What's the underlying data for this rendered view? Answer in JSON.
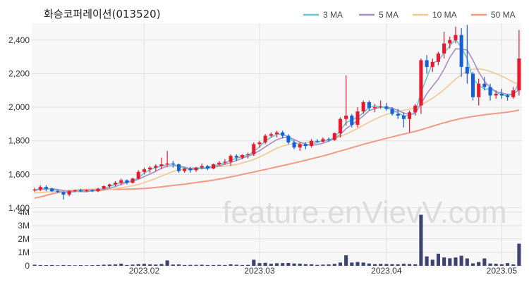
{
  "chart_data": {
    "type": "candlestick",
    "title": "화승코퍼레이션(013520)",
    "watermark": "feature.enVievV.com",
    "price_axis": {
      "ticks": [
        1400,
        1600,
        1800,
        2000,
        2200,
        2400
      ],
      "tick_labels": [
        "1,400",
        "1,600",
        "1,800",
        "2,000",
        "2,200",
        "2,400"
      ],
      "ylim": [
        1400,
        2500
      ]
    },
    "volume_axis": {
      "ticks": [
        0,
        1000000,
        2000000,
        3000000,
        4000000
      ],
      "tick_labels": [
        "0",
        "1M",
        "2M",
        "3M",
        "4M"
      ],
      "ylim": [
        0,
        4200000
      ]
    },
    "x_labels": [
      {
        "index": 19,
        "label": "2023.02"
      },
      {
        "index": 39,
        "label": "2023.03"
      },
      {
        "index": 61,
        "label": "2023.04"
      },
      {
        "index": 81,
        "label": "2023.05"
      }
    ],
    "colors": {
      "up": "#e8192c",
      "down": "#1560d8",
      "volume": "#3d4270",
      "plot_bg": "#f7f7f7",
      "grid": "#e2e2e2"
    },
    "legend": [
      {
        "name": "3 MA",
        "color": "#66c7d1",
        "key": "ma3"
      },
      {
        "name": "5 MA",
        "color": "#a98ec0",
        "key": "ma5"
      },
      {
        "name": "10 MA",
        "color": "#f2c890",
        "key": "ma10"
      },
      {
        "name": "50 MA",
        "color": "#f19a86",
        "key": "ma50"
      }
    ],
    "ohlc": [
      [
        1505,
        1520,
        1495,
        1510
      ],
      [
        1510,
        1535,
        1500,
        1525
      ],
      [
        1525,
        1535,
        1500,
        1515
      ],
      [
        1515,
        1520,
        1495,
        1500
      ],
      [
        1500,
        1510,
        1490,
        1495
      ],
      [
        1495,
        1500,
        1450,
        1480
      ],
      [
        1480,
        1505,
        1470,
        1500
      ],
      [
        1500,
        1510,
        1495,
        1505
      ],
      [
        1505,
        1515,
        1495,
        1500
      ],
      [
        1500,
        1510,
        1495,
        1505
      ],
      [
        1505,
        1510,
        1495,
        1500
      ],
      [
        1500,
        1520,
        1495,
        1515
      ],
      [
        1515,
        1535,
        1510,
        1530
      ],
      [
        1530,
        1545,
        1520,
        1540
      ],
      [
        1540,
        1560,
        1530,
        1550
      ],
      [
        1550,
        1575,
        1535,
        1565
      ],
      [
        1565,
        1570,
        1540,
        1550
      ],
      [
        1550,
        1580,
        1545,
        1575
      ],
      [
        1575,
        1625,
        1570,
        1615
      ],
      [
        1615,
        1640,
        1600,
        1630
      ],
      [
        1630,
        1650,
        1610,
        1640
      ],
      [
        1640,
        1660,
        1620,
        1650
      ],
      [
        1650,
        1700,
        1630,
        1660
      ],
      [
        1660,
        1740,
        1645,
        1665
      ],
      [
        1665,
        1680,
        1640,
        1660
      ],
      [
        1660,
        1665,
        1610,
        1620
      ],
      [
        1620,
        1640,
        1610,
        1635
      ],
      [
        1635,
        1645,
        1610,
        1625
      ],
      [
        1625,
        1645,
        1615,
        1640
      ],
      [
        1640,
        1665,
        1630,
        1650
      ],
      [
        1650,
        1655,
        1625,
        1635
      ],
      [
        1635,
        1665,
        1630,
        1660
      ],
      [
        1660,
        1680,
        1650,
        1670
      ],
      [
        1670,
        1690,
        1660,
        1675
      ],
      [
        1675,
        1720,
        1650,
        1710
      ],
      [
        1710,
        1720,
        1680,
        1700
      ],
      [
        1700,
        1720,
        1690,
        1715
      ],
      [
        1715,
        1730,
        1695,
        1720
      ],
      [
        1720,
        1790,
        1710,
        1780
      ],
      [
        1780,
        1800,
        1760,
        1790
      ],
      [
        1790,
        1840,
        1780,
        1830
      ],
      [
        1830,
        1850,
        1820,
        1840
      ],
      [
        1840,
        1860,
        1820,
        1850
      ],
      [
        1850,
        1860,
        1815,
        1830
      ],
      [
        1830,
        1840,
        1780,
        1790
      ],
      [
        1790,
        1805,
        1750,
        1760
      ],
      [
        1760,
        1790,
        1740,
        1780
      ],
      [
        1780,
        1790,
        1750,
        1770
      ],
      [
        1770,
        1810,
        1760,
        1800
      ],
      [
        1800,
        1810,
        1790,
        1795
      ],
      [
        1795,
        1820,
        1790,
        1810
      ],
      [
        1810,
        1820,
        1795,
        1805
      ],
      [
        1805,
        1850,
        1800,
        1845
      ],
      [
        1845,
        1940,
        1820,
        1930
      ],
      [
        1930,
        2190,
        1890,
        1950
      ],
      [
        1950,
        1960,
        1880,
        1895
      ],
      [
        1895,
        2000,
        1880,
        1975
      ],
      [
        1975,
        2040,
        1960,
        2030
      ],
      [
        2030,
        2040,
        1980,
        1995
      ],
      [
        1995,
        2020,
        1970,
        2000
      ],
      [
        2000,
        2040,
        1990,
        2005
      ],
      [
        2005,
        2025,
        1980,
        1990
      ],
      [
        1990,
        2000,
        1950,
        1960
      ],
      [
        1960,
        1990,
        1930,
        1950
      ],
      [
        1950,
        1970,
        1880,
        1930
      ],
      [
        1930,
        1980,
        1850,
        1970
      ],
      [
        1970,
        2020,
        1950,
        2010
      ],
      [
        2010,
        2290,
        1960,
        2280
      ],
      [
        2280,
        2310,
        2200,
        2240
      ],
      [
        2240,
        2290,
        2210,
        2270
      ],
      [
        2270,
        2330,
        2250,
        2320
      ],
      [
        2320,
        2450,
        2290,
        2380
      ],
      [
        2380,
        2420,
        2350,
        2400
      ],
      [
        2400,
        2480,
        2380,
        2430
      ],
      [
        2430,
        2470,
        2180,
        2240
      ],
      [
        2240,
        2490,
        2140,
        2200
      ],
      [
        2200,
        2210,
        2040,
        2060
      ],
      [
        2060,
        2170,
        2010,
        2140
      ],
      [
        2140,
        2180,
        2100,
        2120
      ],
      [
        2120,
        2140,
        2040,
        2070
      ],
      [
        2070,
        2100,
        2050,
        2080
      ],
      [
        2080,
        2110,
        2050,
        2070
      ],
      [
        2070,
        2080,
        2040,
        2060
      ],
      [
        2060,
        2120,
        2050,
        2100
      ],
      [
        2100,
        2460,
        2070,
        2290
      ]
    ],
    "volume": [
      80000,
      60000,
      50000,
      60000,
      40000,
      60000,
      50000,
      40000,
      50000,
      40000,
      50000,
      60000,
      80000,
      90000,
      100000,
      160000,
      60000,
      90000,
      120000,
      140000,
      100000,
      90000,
      130000,
      400000,
      90000,
      100000,
      60000,
      70000,
      70000,
      80000,
      60000,
      60000,
      70000,
      60000,
      110000,
      80000,
      60000,
      70000,
      450000,
      200000,
      220000,
      150000,
      190000,
      200000,
      210000,
      170000,
      160000,
      120000,
      110000,
      70000,
      90000,
      100000,
      140000,
      240000,
      780000,
      240000,
      280000,
      240000,
      170000,
      120000,
      140000,
      130000,
      120000,
      110000,
      150000,
      130000,
      110000,
      3800000,
      700000,
      450000,
      900000,
      620000,
      560000,
      620000,
      750000,
      550000,
      180000,
      280000,
      550000,
      170000,
      150000,
      110000,
      200000,
      100000,
      1650000
    ],
    "ma3": [
      1508,
      1515,
      1517,
      1513,
      1503,
      1492,
      1492,
      1497,
      1503,
      1503,
      1503,
      1507,
      1515,
      1528,
      1540,
      1552,
      1555,
      1563,
      1580,
      1607,
      1628,
      1640,
      1650,
      1658,
      1662,
      1648,
      1638,
      1627,
      1633,
      1638,
      1642,
      1648,
      1660,
      1668,
      1685,
      1695,
      1708,
      1712,
      1738,
      1763,
      1800,
      1820,
      1840,
      1840,
      1823,
      1793,
      1777,
      1770,
      1783,
      1788,
      1802,
      1803,
      1820,
      1860,
      1908,
      1925,
      1940,
      1967,
      2000,
      2008,
      2000,
      1998,
      1985,
      1967,
      1948,
      1950,
      1970,
      2087,
      2177,
      2263,
      2277,
      2323,
      2367,
      2403,
      2357,
      2290,
      2167,
      2133,
      2107,
      2110,
      2090,
      2073,
      2070,
      2077,
      2150
    ],
    "ma5": [
      1505,
      1510,
      1512,
      1515,
      1510,
      1504,
      1500,
      1498,
      1498,
      1497,
      1502,
      1505,
      1510,
      1518,
      1527,
      1541,
      1551,
      1560,
      1571,
      1587,
      1602,
      1618,
      1637,
      1649,
      1652,
      1649,
      1644,
      1634,
      1636,
      1634,
      1637,
      1644,
      1651,
      1660,
      1671,
      1683,
      1696,
      1708,
      1723,
      1741,
      1764,
      1786,
      1807,
      1818,
      1823,
      1808,
      1792,
      1779,
      1774,
      1777,
      1786,
      1798,
      1813,
      1837,
      1872,
      1895,
      1922,
      1948,
      1980,
      1991,
      2001,
      2000,
      1995,
      1981,
      1965,
      1956,
      1964,
      2021,
      2080,
      2126,
      2168,
      2227,
      2297,
      2348,
      2346,
      2341,
      2281,
      2210,
      2155,
      2118,
      2093,
      2085,
      2076,
      2078,
      2105
    ],
    "ma10": [
      1490,
      1492,
      1495,
      1498,
      1500,
      1500,
      1500,
      1500,
      1500,
      1500,
      1500,
      1502,
      1505,
      1509,
      1515,
      1521,
      1526,
      1532,
      1540,
      1551,
      1563,
      1576,
      1590,
      1604,
      1617,
      1626,
      1633,
      1638,
      1640,
      1640,
      1641,
      1643,
      1646,
      1649,
      1653,
      1659,
      1668,
      1678,
      1689,
      1704,
      1720,
      1738,
      1756,
      1769,
      1778,
      1783,
      1787,
      1790,
      1793,
      1796,
      1800,
      1805,
      1813,
      1825,
      1840,
      1856,
      1874,
      1892,
      1911,
      1928,
      1944,
      1957,
      1968,
      1977,
      1982,
      1988,
      1996,
      2013,
      2033,
      2053,
      2078,
      2105,
      2136,
      2168,
      2194,
      2214,
      2227,
      2228,
      2223,
      2213,
      2200,
      2185,
      2168,
      2149,
      2135
    ],
    "ma50": [
      1458,
      1466,
      1475,
      1484,
      1492,
      1498,
      1503,
      1506,
      1508,
      1510,
      1511,
      1511,
      1511,
      1511,
      1511,
      1511,
      1512,
      1513,
      1514,
      1516,
      1519,
      1522,
      1526,
      1530,
      1534,
      1538,
      1542,
      1547,
      1551,
      1556,
      1561,
      1566,
      1572,
      1578,
      1585,
      1592,
      1600,
      1607,
      1614,
      1622,
      1629,
      1637,
      1645,
      1652,
      1660,
      1668,
      1676,
      1684,
      1693,
      1701,
      1710,
      1719,
      1729,
      1739,
      1749,
      1759,
      1769,
      1779,
      1788,
      1797,
      1806,
      1815,
      1823,
      1832,
      1840,
      1848,
      1856,
      1866,
      1876,
      1887,
      1897,
      1907,
      1917,
      1925,
      1933,
      1939,
      1945,
      1950,
      1955,
      1959,
      1963,
      1967,
      1971,
      1976,
      1983
    ]
  }
}
